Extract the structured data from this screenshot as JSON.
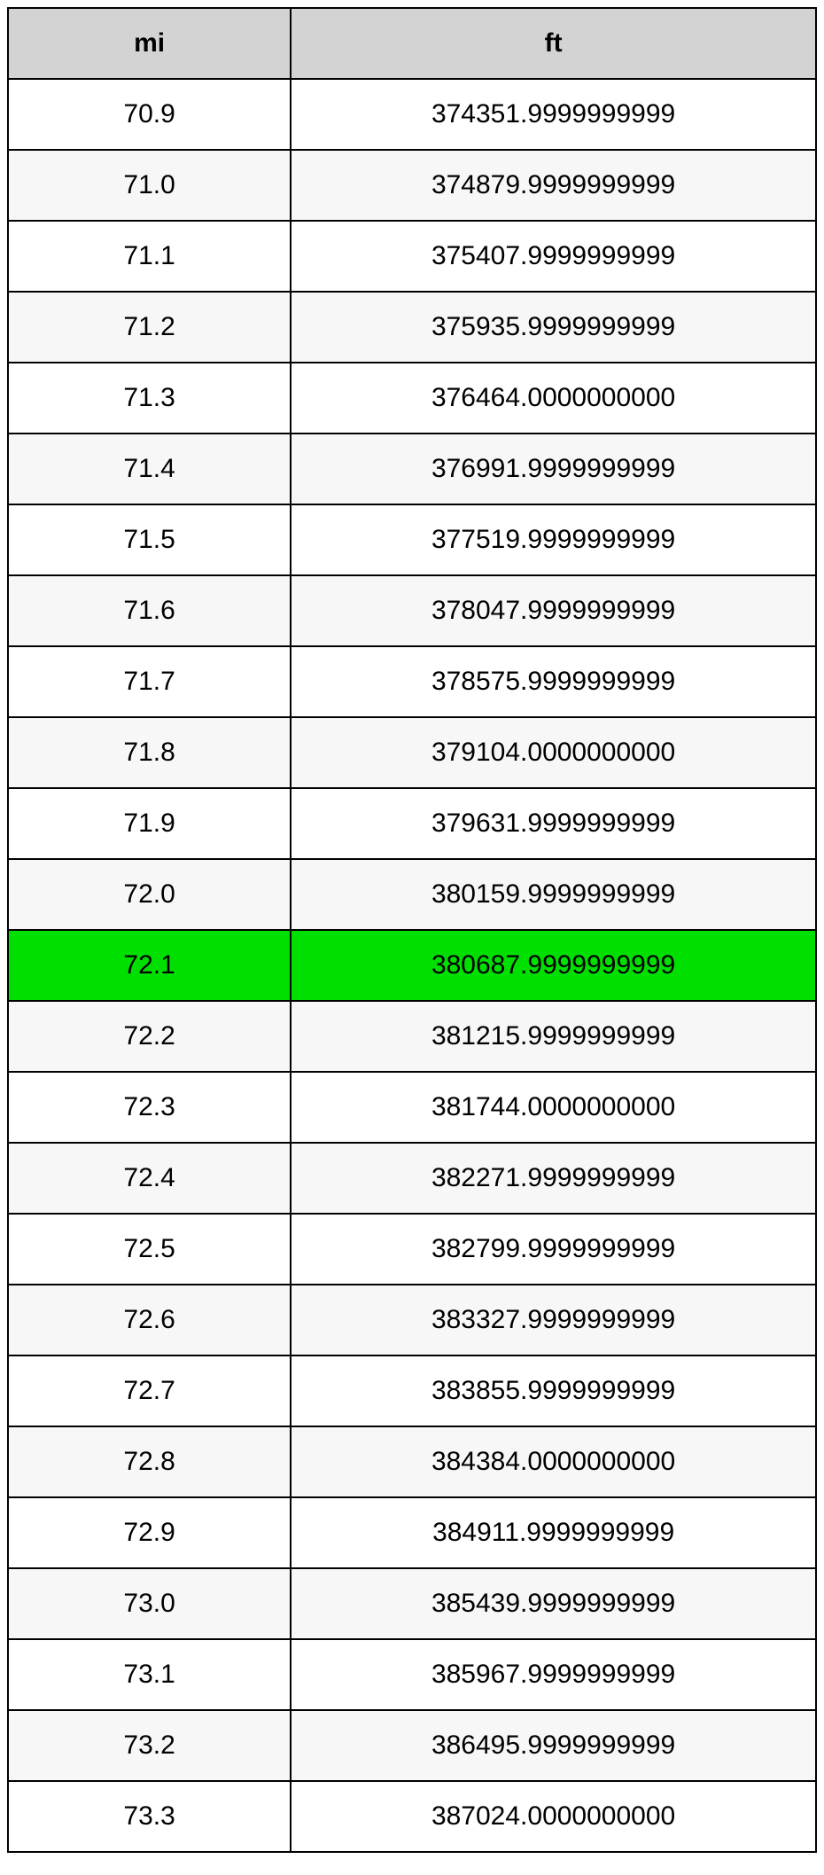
{
  "table": {
    "type": "table",
    "header_bg_color": "#d3d3d3",
    "row_odd_bg_color": "#ffffff",
    "row_even_bg_color": "#f7f7f7",
    "highlight_bg_color": "#00e000",
    "border_color": "#000000",
    "text_color": "#000000",
    "font_size": 30,
    "header_font_weight": "bold",
    "columns": [
      {
        "key": "mi",
        "label": "mi",
        "width_pct": 35,
        "align": "center"
      },
      {
        "key": "ft",
        "label": "ft",
        "width_pct": 65,
        "align": "center"
      }
    ],
    "highlighted_row_index": 12,
    "rows": [
      {
        "mi": "70.9",
        "ft": "374351.9999999999"
      },
      {
        "mi": "71.0",
        "ft": "374879.9999999999"
      },
      {
        "mi": "71.1",
        "ft": "375407.9999999999"
      },
      {
        "mi": "71.2",
        "ft": "375935.9999999999"
      },
      {
        "mi": "71.3",
        "ft": "376464.0000000000"
      },
      {
        "mi": "71.4",
        "ft": "376991.9999999999"
      },
      {
        "mi": "71.5",
        "ft": "377519.9999999999"
      },
      {
        "mi": "71.6",
        "ft": "378047.9999999999"
      },
      {
        "mi": "71.7",
        "ft": "378575.9999999999"
      },
      {
        "mi": "71.8",
        "ft": "379104.0000000000"
      },
      {
        "mi": "71.9",
        "ft": "379631.9999999999"
      },
      {
        "mi": "72.0",
        "ft": "380159.9999999999"
      },
      {
        "mi": "72.1",
        "ft": "380687.9999999999"
      },
      {
        "mi": "72.2",
        "ft": "381215.9999999999"
      },
      {
        "mi": "72.3",
        "ft": "381744.0000000000"
      },
      {
        "mi": "72.4",
        "ft": "382271.9999999999"
      },
      {
        "mi": "72.5",
        "ft": "382799.9999999999"
      },
      {
        "mi": "72.6",
        "ft": "383327.9999999999"
      },
      {
        "mi": "72.7",
        "ft": "383855.9999999999"
      },
      {
        "mi": "72.8",
        "ft": "384384.0000000000"
      },
      {
        "mi": "72.9",
        "ft": "384911.9999999999"
      },
      {
        "mi": "73.0",
        "ft": "385439.9999999999"
      },
      {
        "mi": "73.1",
        "ft": "385967.9999999999"
      },
      {
        "mi": "73.2",
        "ft": "386495.9999999999"
      },
      {
        "mi": "73.3",
        "ft": "387024.0000000000"
      }
    ]
  }
}
